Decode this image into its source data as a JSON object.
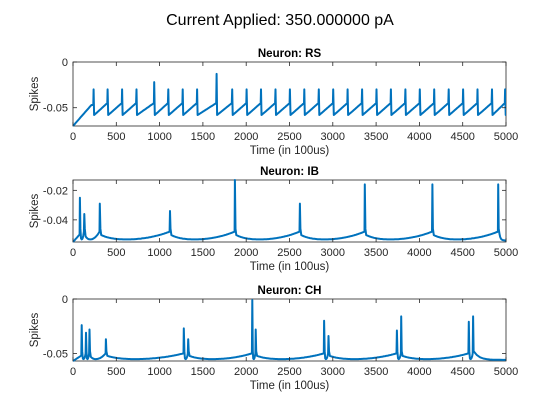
{
  "figure": {
    "title": "Current Applied: 350.000000 pA",
    "line_color": "#0072BD",
    "axis_color": "#262626"
  },
  "chart_data": [
    {
      "type": "line",
      "title": "Neuron: RS",
      "xlabel": "Time (in 100us)",
      "ylabel": "Spikes",
      "xlim": [
        0,
        5000
      ],
      "ylim": [
        -0.07,
        0
      ],
      "xticks": [
        0,
        500,
        1000,
        1500,
        2000,
        2500,
        3000,
        3500,
        4000,
        4500,
        5000
      ],
      "yticks": [
        0,
        -0.05
      ],
      "ytick_labels": [
        "0",
        "-0.05"
      ],
      "grid": false,
      "series": [
        {
          "spikes": [
            {
              "t": 238,
              "v": -0.03
            },
            {
              "t": 400,
              "v": -0.03
            },
            {
              "t": 567,
              "v": -0.03
            },
            {
              "t": 733,
              "v": -0.03
            },
            {
              "t": 938,
              "v": -0.022
            },
            {
              "t": 1100,
              "v": -0.03
            },
            {
              "t": 1267,
              "v": -0.03
            },
            {
              "t": 1433,
              "v": -0.03
            },
            {
              "t": 1658,
              "v": -0.013
            },
            {
              "t": 1838,
              "v": -0.03
            },
            {
              "t": 2005,
              "v": -0.03
            },
            {
              "t": 2171,
              "v": -0.03
            },
            {
              "t": 2338,
              "v": -0.03
            },
            {
              "t": 2505,
              "v": -0.03
            },
            {
              "t": 2671,
              "v": -0.03
            },
            {
              "t": 2838,
              "v": -0.03
            },
            {
              "t": 3005,
              "v": -0.03
            },
            {
              "t": 3171,
              "v": -0.03
            },
            {
              "t": 3338,
              "v": -0.03
            },
            {
              "t": 3505,
              "v": -0.03
            },
            {
              "t": 3671,
              "v": -0.03
            },
            {
              "t": 3838,
              "v": -0.03
            },
            {
              "t": 4005,
              "v": -0.03
            },
            {
              "t": 4171,
              "v": -0.03
            },
            {
              "t": 4338,
              "v": -0.03
            },
            {
              "t": 4505,
              "v": -0.03
            },
            {
              "t": 4671,
              "v": -0.03
            },
            {
              "t": 4838,
              "v": -0.03
            },
            {
              "t": 4990,
              "v": -0.03
            }
          ],
          "rest": -0.057,
          "start": -0.07
        }
      ]
    },
    {
      "type": "line",
      "title": "Neuron: IB",
      "xlabel": "Time (in 100us)",
      "ylabel": "Spikes",
      "xlim": [
        0,
        5000
      ],
      "ylim": [
        -0.055,
        -0.013
      ],
      "xticks": [
        0,
        500,
        1000,
        1500,
        2000,
        2500,
        3000,
        3500,
        4000,
        4500,
        5000
      ],
      "yticks": [
        -0.02,
        -0.04
      ],
      "ytick_labels": [
        "-0.02",
        "-0.04"
      ],
      "grid": false,
      "series": [
        {
          "spikes": [
            {
              "t": 80,
              "v": -0.025
            },
            {
              "t": 130,
              "v": -0.036
            },
            {
              "t": 310,
              "v": -0.029
            },
            {
              "t": 1120,
              "v": -0.034
            },
            {
              "t": 1870,
              "v": -0.013
            },
            {
              "t": 2620,
              "v": -0.029
            },
            {
              "t": 3370,
              "v": -0.016
            },
            {
              "t": 4150,
              "v": -0.016
            },
            {
              "t": 4910,
              "v": -0.016
            }
          ],
          "rest": -0.054,
          "start": -0.055
        }
      ]
    },
    {
      "type": "line",
      "title": "Neuron: CH",
      "xlabel": "Time (in 100us)",
      "ylabel": "Spikes",
      "xlim": [
        0,
        5000
      ],
      "ylim": [
        -0.057,
        0
      ],
      "xticks": [
        0,
        500,
        1000,
        1500,
        2000,
        2500,
        3000,
        3500,
        4000,
        4500,
        5000
      ],
      "yticks": [
        0,
        -0.05
      ],
      "ytick_labels": [
        "0",
        "-0.05"
      ],
      "grid": false,
      "series": [
        {
          "bursts": [
            {
              "spikes": [
                {
                  "t": 100,
                  "v": -0.024
                },
                {
                  "t": 150,
                  "v": -0.031
                },
                {
                  "t": 190,
                  "v": -0.028
                }
              ]
            },
            {
              "spikes": [
                {
                  "t": 380,
                  "v": -0.037
                }
              ]
            },
            {
              "spikes": [
                {
                  "t": 1280,
                  "v": -0.027
                },
                {
                  "t": 1330,
                  "v": -0.037
                }
              ]
            },
            {
              "spikes": [
                {
                  "t": 2070,
                  "v": -0.001
                },
                {
                  "t": 2110,
                  "v": -0.028
                }
              ]
            },
            {
              "spikes": [
                {
                  "t": 2900,
                  "v": -0.02
                },
                {
                  "t": 2950,
                  "v": -0.034
                }
              ]
            },
            {
              "spikes": [
                {
                  "t": 3740,
                  "v": -0.029
                },
                {
                  "t": 3790,
                  "v": -0.016
                }
              ]
            },
            {
              "spikes": [
                {
                  "t": 4570,
                  "v": -0.021
                },
                {
                  "t": 4620,
                  "v": -0.016
                }
              ]
            }
          ],
          "rest": -0.056,
          "start": -0.057
        }
      ]
    }
  ]
}
